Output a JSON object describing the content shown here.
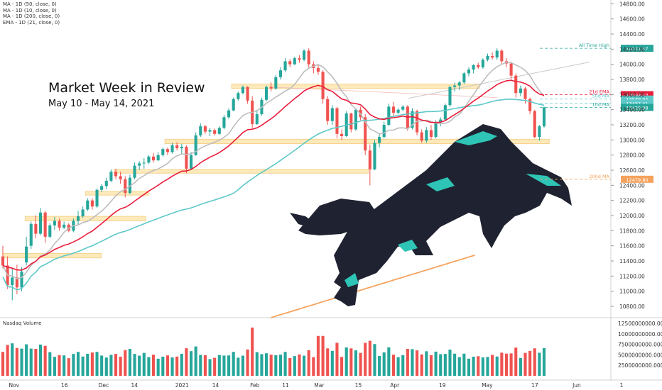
{
  "legend": {
    "items": [
      "MA - 1D (50, close, 0)",
      "MA - 1D (10, close, 0)",
      "MA - 1D (200, close, 0)",
      "EMA - 1D (21, close, 0)"
    ]
  },
  "headline": {
    "title": "Market Week in Review",
    "subtitle": "May 10 - May 14, 2021"
  },
  "volume_title": "Nasdaq Volume",
  "colors": {
    "up": "#26a69a",
    "down": "#ef5350",
    "ema21": "#e91e3c",
    "ma50": "#5ec8c8",
    "ma10": "#bdbdbd",
    "ma200": "#f5a25d",
    "zone_fill": "#fde7b0",
    "zone_stroke": "#f3c46b",
    "bull_body": "#1f2230",
    "bull_accent": "#2ec4b6"
  },
  "chart_data": [
    {
      "type": "candlestick",
      "title": "",
      "ylim": [
        10650,
        14850
      ],
      "y_ticks": [
        14800,
        14600,
        14400,
        14200,
        14000,
        13800,
        13600,
        13400,
        13200,
        13000,
        12800,
        12600,
        12400,
        12200,
        12000,
        11800,
        11600,
        11400,
        11200,
        11000,
        10800
      ],
      "x_ticks": [
        "Nov",
        "16",
        "Dec",
        "14",
        "2021",
        "14",
        "Feb",
        "11",
        "Mar",
        "15",
        "Apr",
        "19",
        "May",
        "17",
        "Jun",
        "1"
      ],
      "series_ohlc": [
        {
          "o": 11460,
          "h": 11600,
          "l": 11300,
          "c": 11340
        },
        {
          "o": 11340,
          "h": 11460,
          "l": 11030,
          "c": 11080
        },
        {
          "o": 11080,
          "h": 11300,
          "l": 10880,
          "c": 11180
        },
        {
          "o": 11180,
          "h": 11350,
          "l": 10960,
          "c": 11050
        },
        {
          "o": 11050,
          "h": 11320,
          "l": 11000,
          "c": 11260
        },
        {
          "o": 11380,
          "h": 11720,
          "l": 11340,
          "c": 11590
        },
        {
          "o": 11600,
          "h": 11920,
          "l": 11560,
          "c": 11890
        },
        {
          "o": 11890,
          "h": 12000,
          "l": 11700,
          "c": 11760
        },
        {
          "o": 11760,
          "h": 12100,
          "l": 11740,
          "c": 12040
        },
        {
          "o": 12040,
          "h": 12060,
          "l": 11640,
          "c": 11720
        },
        {
          "o": 11720,
          "h": 11900,
          "l": 11700,
          "c": 11870
        },
        {
          "o": 11870,
          "h": 11980,
          "l": 11810,
          "c": 11930
        },
        {
          "o": 11930,
          "h": 11960,
          "l": 11800,
          "c": 11840
        },
        {
          "o": 11840,
          "h": 11920,
          "l": 11820,
          "c": 11880
        },
        {
          "o": 11880,
          "h": 11900,
          "l": 11780,
          "c": 11800
        },
        {
          "o": 11800,
          "h": 11960,
          "l": 11780,
          "c": 11930
        },
        {
          "o": 11930,
          "h": 12060,
          "l": 11880,
          "c": 11990
        },
        {
          "o": 11990,
          "h": 12120,
          "l": 11970,
          "c": 12080
        },
        {
          "o": 12080,
          "h": 12230,
          "l": 12060,
          "c": 12200
        },
        {
          "o": 12200,
          "h": 12230,
          "l": 12080,
          "c": 12120
        },
        {
          "o": 12120,
          "h": 12360,
          "l": 12100,
          "c": 12340
        },
        {
          "o": 12340,
          "h": 12420,
          "l": 12310,
          "c": 12390
        },
        {
          "o": 12390,
          "h": 12500,
          "l": 12350,
          "c": 12460
        },
        {
          "o": 12460,
          "h": 12610,
          "l": 12440,
          "c": 12580
        },
        {
          "o": 12580,
          "h": 12620,
          "l": 12480,
          "c": 12520
        },
        {
          "o": 12520,
          "h": 12580,
          "l": 12420,
          "c": 12480
        },
        {
          "o": 12480,
          "h": 12520,
          "l": 12240,
          "c": 12300
        },
        {
          "o": 12300,
          "h": 12540,
          "l": 12280,
          "c": 12500
        },
        {
          "o": 12500,
          "h": 12700,
          "l": 12480,
          "c": 12660
        },
        {
          "o": 12660,
          "h": 12720,
          "l": 12600,
          "c": 12690
        },
        {
          "o": 12690,
          "h": 12760,
          "l": 12620,
          "c": 12700
        },
        {
          "o": 12700,
          "h": 12800,
          "l": 12680,
          "c": 12780
        },
        {
          "o": 12780,
          "h": 12830,
          "l": 12700,
          "c": 12730
        },
        {
          "o": 12730,
          "h": 12840,
          "l": 12720,
          "c": 12800
        },
        {
          "o": 12800,
          "h": 12900,
          "l": 12780,
          "c": 12880
        },
        {
          "o": 12880,
          "h": 12900,
          "l": 12800,
          "c": 12840
        },
        {
          "o": 12840,
          "h": 12960,
          "l": 12820,
          "c": 12930
        },
        {
          "o": 12930,
          "h": 12970,
          "l": 12860,
          "c": 12890
        },
        {
          "o": 12890,
          "h": 12950,
          "l": 12820,
          "c": 12910
        },
        {
          "o": 12910,
          "h": 12930,
          "l": 12560,
          "c": 12620
        },
        {
          "o": 12620,
          "h": 12840,
          "l": 12600,
          "c": 12800
        },
        {
          "o": 12800,
          "h": 13100,
          "l": 12790,
          "c": 13060
        },
        {
          "o": 13060,
          "h": 13220,
          "l": 13040,
          "c": 13180
        },
        {
          "o": 13180,
          "h": 13200,
          "l": 13080,
          "c": 13110
        },
        {
          "o": 13110,
          "h": 13160,
          "l": 13050,
          "c": 13130
        },
        {
          "o": 13130,
          "h": 13150,
          "l": 13060,
          "c": 13080
        },
        {
          "o": 13080,
          "h": 13180,
          "l": 13070,
          "c": 13160
        },
        {
          "o": 13160,
          "h": 13330,
          "l": 13140,
          "c": 13300
        },
        {
          "o": 13300,
          "h": 13420,
          "l": 13280,
          "c": 13390
        },
        {
          "o": 13390,
          "h": 13560,
          "l": 13380,
          "c": 13540
        },
        {
          "o": 13540,
          "h": 13640,
          "l": 13520,
          "c": 13620
        },
        {
          "o": 13620,
          "h": 13720,
          "l": 13600,
          "c": 13700
        },
        {
          "o": 13700,
          "h": 13710,
          "l": 13480,
          "c": 13520
        },
        {
          "o": 13520,
          "h": 13580,
          "l": 13160,
          "c": 13210
        },
        {
          "o": 13210,
          "h": 13400,
          "l": 13200,
          "c": 13340
        },
        {
          "o": 13340,
          "h": 13560,
          "l": 13320,
          "c": 13530
        },
        {
          "o": 13530,
          "h": 13720,
          "l": 13510,
          "c": 13700
        },
        {
          "o": 13700,
          "h": 13760,
          "l": 13640,
          "c": 13680
        },
        {
          "o": 13680,
          "h": 13860,
          "l": 13660,
          "c": 13830
        },
        {
          "o": 13830,
          "h": 13960,
          "l": 13800,
          "c": 13920
        },
        {
          "o": 13920,
          "h": 14080,
          "l": 13900,
          "c": 14040
        },
        {
          "o": 14040,
          "h": 14070,
          "l": 13960,
          "c": 14000
        },
        {
          "o": 14000,
          "h": 14100,
          "l": 13990,
          "c": 14080
        },
        {
          "o": 14080,
          "h": 14120,
          "l": 14020,
          "c": 14060
        },
        {
          "o": 14060,
          "h": 14200,
          "l": 14040,
          "c": 14180
        },
        {
          "o": 14180,
          "h": 14211,
          "l": 13960,
          "c": 14000
        },
        {
          "o": 14000,
          "h": 14040,
          "l": 13880,
          "c": 13950
        },
        {
          "o": 13950,
          "h": 14000,
          "l": 13860,
          "c": 13900
        },
        {
          "o": 13900,
          "h": 13920,
          "l": 13480,
          "c": 13540
        },
        {
          "o": 13540,
          "h": 13580,
          "l": 13200,
          "c": 13250
        },
        {
          "o": 13250,
          "h": 13460,
          "l": 13200,
          "c": 13420
        },
        {
          "o": 13420,
          "h": 13440,
          "l": 13020,
          "c": 13080
        },
        {
          "o": 13080,
          "h": 13140,
          "l": 13000,
          "c": 13050
        },
        {
          "o": 13050,
          "h": 13380,
          "l": 13040,
          "c": 13350
        },
        {
          "o": 13350,
          "h": 13360,
          "l": 13100,
          "c": 13140
        },
        {
          "o": 13140,
          "h": 13420,
          "l": 13120,
          "c": 13400
        },
        {
          "o": 13400,
          "h": 13440,
          "l": 13260,
          "c": 13300
        },
        {
          "o": 13300,
          "h": 13340,
          "l": 12800,
          "c": 12860
        },
        {
          "o": 12860,
          "h": 12940,
          "l": 12400,
          "c": 12610
        },
        {
          "o": 12610,
          "h": 13000,
          "l": 12600,
          "c": 12960
        },
        {
          "o": 12960,
          "h": 13080,
          "l": 12900,
          "c": 13040
        },
        {
          "o": 13040,
          "h": 13240,
          "l": 13020,
          "c": 13200
        },
        {
          "o": 13200,
          "h": 13480,
          "l": 13180,
          "c": 13440
        },
        {
          "o": 13440,
          "h": 13500,
          "l": 13300,
          "c": 13360
        },
        {
          "o": 13360,
          "h": 13420,
          "l": 13340,
          "c": 13400
        },
        {
          "o": 13400,
          "h": 13460,
          "l": 13380,
          "c": 13440
        },
        {
          "o": 13440,
          "h": 13460,
          "l": 13120,
          "c": 13160
        },
        {
          "o": 13160,
          "h": 13420,
          "l": 13140,
          "c": 13380
        },
        {
          "o": 13380,
          "h": 13400,
          "l": 13060,
          "c": 13100
        },
        {
          "o": 13100,
          "h": 13140,
          "l": 12960,
          "c": 12990
        },
        {
          "o": 12990,
          "h": 13170,
          "l": 12960,
          "c": 13130
        },
        {
          "o": 13130,
          "h": 13200,
          "l": 13000,
          "c": 13040
        },
        {
          "o": 13040,
          "h": 13260,
          "l": 13020,
          "c": 13230
        },
        {
          "o": 13230,
          "h": 13300,
          "l": 13180,
          "c": 13270
        },
        {
          "o": 13270,
          "h": 13480,
          "l": 13260,
          "c": 13460
        },
        {
          "o": 13460,
          "h": 13720,
          "l": 13440,
          "c": 13700
        },
        {
          "o": 13700,
          "h": 13760,
          "l": 13640,
          "c": 13720
        },
        {
          "o": 13720,
          "h": 13780,
          "l": 13660,
          "c": 13760
        },
        {
          "o": 13760,
          "h": 13900,
          "l": 13740,
          "c": 13880
        },
        {
          "o": 13880,
          "h": 13960,
          "l": 13840,
          "c": 13930
        },
        {
          "o": 13930,
          "h": 14000,
          "l": 13880,
          "c": 13990
        },
        {
          "o": 13990,
          "h": 14020,
          "l": 13940,
          "c": 13960
        },
        {
          "o": 13960,
          "h": 14080,
          "l": 13940,
          "c": 14060
        },
        {
          "o": 14060,
          "h": 14140,
          "l": 14040,
          "c": 14110
        },
        {
          "o": 14110,
          "h": 14160,
          "l": 14060,
          "c": 14090
        },
        {
          "o": 14090,
          "h": 14211,
          "l": 14060,
          "c": 14180
        },
        {
          "o": 14180,
          "h": 14200,
          "l": 14000,
          "c": 14040
        },
        {
          "o": 14040,
          "h": 14080,
          "l": 13960,
          "c": 14010
        },
        {
          "o": 14010,
          "h": 14020,
          "l": 13800,
          "c": 13850
        },
        {
          "o": 13850,
          "h": 13880,
          "l": 13560,
          "c": 13620
        },
        {
          "o": 13620,
          "h": 13720,
          "l": 13580,
          "c": 13680
        },
        {
          "o": 13680,
          "h": 13700,
          "l": 13480,
          "c": 13540
        },
        {
          "o": 13540,
          "h": 13560,
          "l": 13340,
          "c": 13380
        },
        {
          "o": 13380,
          "h": 13400,
          "l": 13020,
          "c": 13040
        },
        {
          "o": 13040,
          "h": 13200,
          "l": 12990,
          "c": 13180
        },
        {
          "o": 13180,
          "h": 13440,
          "l": 13160,
          "c": 13429
        }
      ],
      "moving_averages": [
        {
          "name": "All Time High",
          "level": 14211.57,
          "label": "14211.57",
          "color_key": "up"
        },
        {
          "name": "21d EMA",
          "level": 13598.43,
          "label": "13598.43",
          "color_key": "ema21"
        },
        {
          "name": "50d MA",
          "level": 13539.94,
          "label": "13539.94",
          "color_key": "ma50"
        },
        {
          "name": "",
          "level": 13487.41,
          "label": "13487.41",
          "color_key": "ma50"
        },
        {
          "name": "10d MA",
          "level": 13429.98,
          "label": "13429.98",
          "color_key": "up"
        },
        {
          "name": "200d MA",
          "level": 12479.8,
          "label": "12479.80",
          "color_key": "ma200"
        }
      ]
    },
    {
      "type": "bar",
      "title": "Nasdaq Volume",
      "ylim": [
        0,
        12500000000
      ],
      "y_ticks": [
        {
          "value": 12500000000,
          "label": "12500000000.000"
        },
        {
          "value": 10000000000,
          "label": "10000000000.000"
        },
        {
          "value": 7500000000,
          "label": "7500000000.000"
        },
        {
          "value": 5000000000,
          "label": "5000000000.000"
        },
        {
          "value": 2500000000,
          "label": "2500000000.000"
        }
      ]
    }
  ]
}
